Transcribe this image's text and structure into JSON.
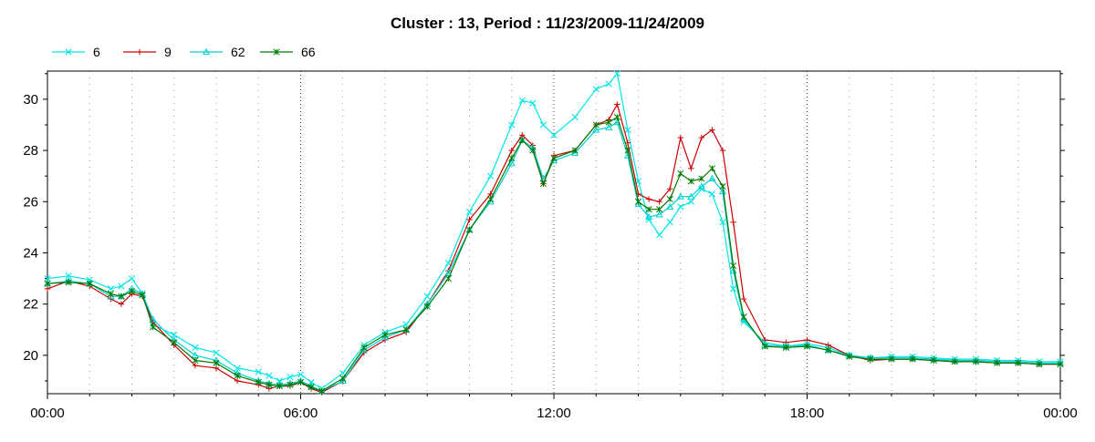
{
  "chart_data": {
    "type": "line",
    "title": "Cluster : 13, Period : 11/23/2009-11/24/2009",
    "xlabel": "",
    "ylabel": "",
    "x_unit": "hours",
    "xlim": [
      0,
      24
    ],
    "ylim": [
      18.5,
      31.1
    ],
    "x_ticks": [
      {
        "value": 0,
        "label": "00:00"
      },
      {
        "value": 6,
        "label": "06:00"
      },
      {
        "value": 12,
        "label": "12:00"
      },
      {
        "value": 18,
        "label": "18:00"
      },
      {
        "value": 24,
        "label": "00:00"
      }
    ],
    "y_ticks": [
      {
        "value": 20,
        "label": "20"
      },
      {
        "value": 22,
        "label": "22"
      },
      {
        "value": 24,
        "label": "24"
      },
      {
        "value": 26,
        "label": "26"
      },
      {
        "value": 28,
        "label": "28"
      },
      {
        "value": 30,
        "label": "30"
      }
    ],
    "grid": true,
    "legend_position": "top-left",
    "x": [
      0,
      0.5,
      1,
      1.5,
      1.75,
      2,
      2.25,
      2.5,
      3,
      3.5,
      4,
      4.5,
      5,
      5.25,
      5.5,
      5.75,
      6,
      6.25,
      6.5,
      7,
      7.5,
      8,
      8.5,
      9,
      9.5,
      10,
      10.5,
      11,
      11.25,
      11.5,
      11.75,
      12,
      12.5,
      13,
      13.3,
      13.5,
      13.75,
      14,
      14.25,
      14.5,
      14.75,
      15,
      15.25,
      15.5,
      15.75,
      16,
      16.25,
      16.5,
      17,
      17.5,
      18,
      18.5,
      19,
      19.5,
      20,
      20.5,
      21,
      21.5,
      22,
      22.5,
      23,
      23.5,
      24
    ],
    "series": [
      {
        "name": "6",
        "color": "#00e5e5",
        "marker": "x",
        "values": [
          23.0,
          23.1,
          22.95,
          22.6,
          22.7,
          23.0,
          22.4,
          21.2,
          20.8,
          20.3,
          20.1,
          19.5,
          19.35,
          19.2,
          19.0,
          19.15,
          19.25,
          18.95,
          18.7,
          19.3,
          20.4,
          20.9,
          21.2,
          22.3,
          23.6,
          25.6,
          27.0,
          29.0,
          29.95,
          29.85,
          29.0,
          28.6,
          29.3,
          30.4,
          30.6,
          31.0,
          28.8,
          26.8,
          25.3,
          24.7,
          25.2,
          25.8,
          26.0,
          26.5,
          26.3,
          25.2,
          22.6,
          21.3,
          20.5,
          20.35,
          20.45,
          20.3,
          20.0,
          19.9,
          19.95,
          19.95,
          19.9,
          19.85,
          19.85,
          19.8,
          19.8,
          19.75,
          19.75
        ]
      },
      {
        "name": "9",
        "color": "#cc0000",
        "marker": "plus",
        "values": [
          22.6,
          22.9,
          22.7,
          22.2,
          22.0,
          22.4,
          22.3,
          21.3,
          20.4,
          19.6,
          19.5,
          19.0,
          18.85,
          18.7,
          18.8,
          18.8,
          18.95,
          18.7,
          18.55,
          19.0,
          20.1,
          20.6,
          20.9,
          22.0,
          23.3,
          25.3,
          26.3,
          28.0,
          28.6,
          28.2,
          26.7,
          27.8,
          28.0,
          29.0,
          29.2,
          29.8,
          28.3,
          26.3,
          26.1,
          26.0,
          26.5,
          28.5,
          27.3,
          28.5,
          28.8,
          28.0,
          25.2,
          22.2,
          20.6,
          20.5,
          20.6,
          20.4,
          20.0,
          19.8,
          19.85,
          19.85,
          19.8,
          19.75,
          19.75,
          19.7,
          19.7,
          19.65,
          19.65
        ]
      },
      {
        "name": "62",
        "color": "#00d0d0",
        "marker": "triangle",
        "values": [
          22.8,
          22.9,
          22.8,
          22.3,
          22.3,
          22.6,
          22.4,
          21.4,
          20.6,
          20.0,
          19.8,
          19.3,
          19.0,
          18.9,
          18.85,
          18.9,
          19.0,
          18.8,
          18.6,
          19.0,
          20.2,
          20.7,
          21.0,
          22.0,
          23.2,
          24.9,
          26.0,
          27.5,
          28.4,
          28.1,
          26.9,
          27.6,
          27.9,
          28.8,
          28.9,
          29.1,
          27.8,
          25.9,
          25.4,
          25.5,
          25.8,
          26.2,
          26.2,
          26.6,
          26.9,
          26.4,
          23.3,
          21.4,
          20.4,
          20.35,
          20.4,
          20.2,
          20.0,
          19.9,
          19.9,
          19.9,
          19.85,
          19.8,
          19.8,
          19.75,
          19.75,
          19.7,
          19.7
        ]
      },
      {
        "name": "66",
        "color": "#007a00",
        "marker": "star",
        "values": [
          22.8,
          22.85,
          22.8,
          22.4,
          22.3,
          22.5,
          22.35,
          21.1,
          20.5,
          19.8,
          19.7,
          19.2,
          18.95,
          18.85,
          18.8,
          18.85,
          18.95,
          18.75,
          18.6,
          19.1,
          20.3,
          20.8,
          21.0,
          21.9,
          23.0,
          24.9,
          26.1,
          27.7,
          28.4,
          28.0,
          26.7,
          27.7,
          28.0,
          29.0,
          29.1,
          29.3,
          28.0,
          26.0,
          25.7,
          25.7,
          26.1,
          27.1,
          26.8,
          26.9,
          27.3,
          26.6,
          23.5,
          21.5,
          20.35,
          20.3,
          20.35,
          20.2,
          19.95,
          19.85,
          19.85,
          19.85,
          19.8,
          19.75,
          19.75,
          19.7,
          19.7,
          19.65,
          19.65
        ]
      }
    ]
  }
}
